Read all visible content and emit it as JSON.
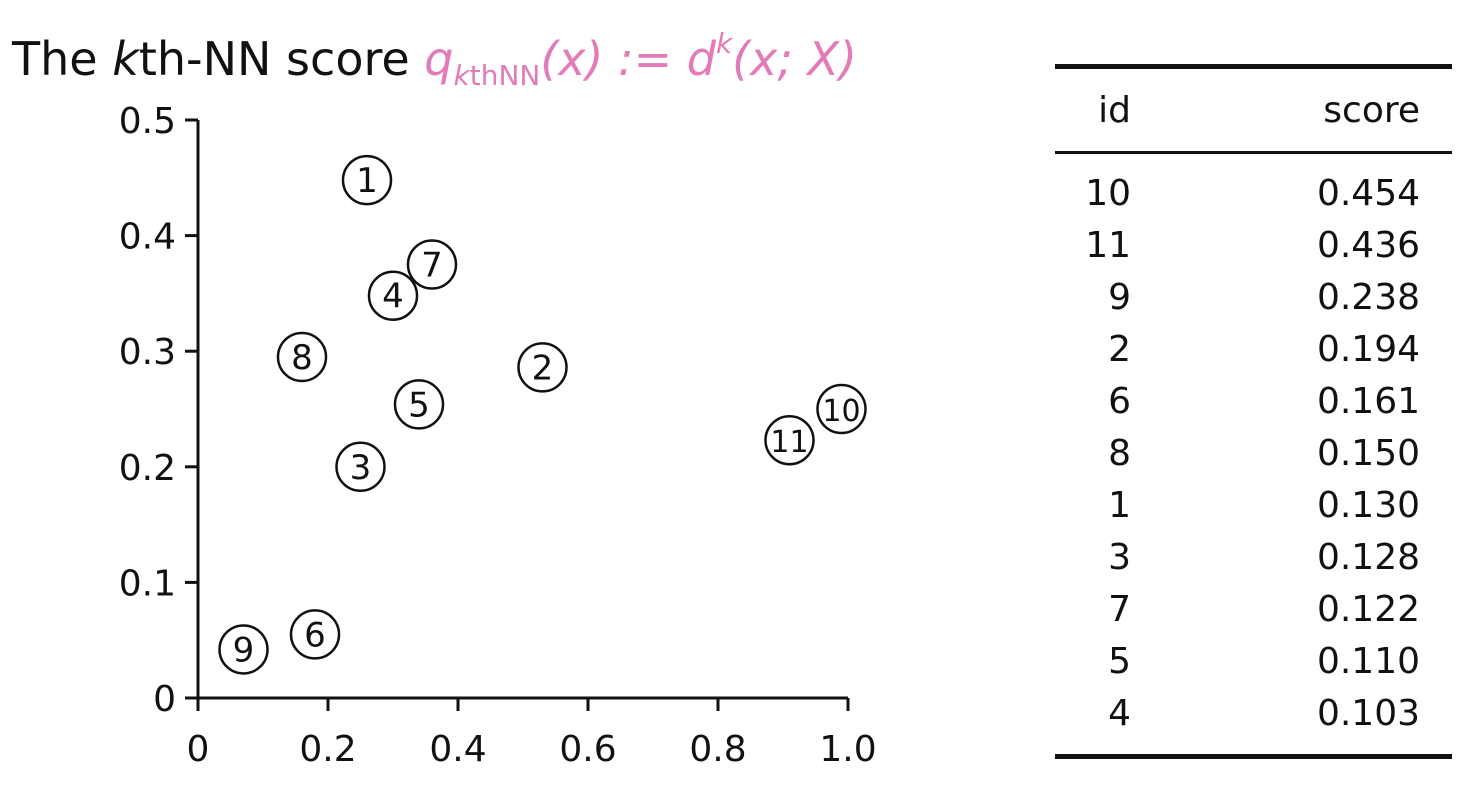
{
  "title": {
    "prefix": "The ",
    "k": "k",
    "after_k": "th-NN score ",
    "q": "q",
    "sub_k": "k",
    "sub_rest": "thNN",
    "formula_mid": "(x) := d",
    "sup": "k",
    "formula_end": "(x; X)"
  },
  "chart_data": {
    "type": "scatter",
    "title": "",
    "xlabel": "",
    "ylabel": "",
    "xlim": [
      0,
      1.0
    ],
    "ylim": [
      0,
      0.5
    ],
    "x_ticks": [
      "0",
      "0.2",
      "0.4",
      "0.6",
      "0.8",
      "1.0"
    ],
    "y_ticks": [
      "0",
      "0.1",
      "0.2",
      "0.3",
      "0.4",
      "0.5"
    ],
    "grid": false,
    "marker": "circled-id",
    "points": [
      {
        "id": "1",
        "x": 0.26,
        "y": 0.448
      },
      {
        "id": "2",
        "x": 0.53,
        "y": 0.286
      },
      {
        "id": "3",
        "x": 0.25,
        "y": 0.2
      },
      {
        "id": "4",
        "x": 0.3,
        "y": 0.348
      },
      {
        "id": "5",
        "x": 0.34,
        "y": 0.254
      },
      {
        "id": "6",
        "x": 0.18,
        "y": 0.055
      },
      {
        "id": "7",
        "x": 0.36,
        "y": 0.375
      },
      {
        "id": "8",
        "x": 0.16,
        "y": 0.295
      },
      {
        "id": "9",
        "x": 0.07,
        "y": 0.042
      },
      {
        "id": "10",
        "x": 0.99,
        "y": 0.25
      },
      {
        "id": "11",
        "x": 0.91,
        "y": 0.223
      }
    ]
  },
  "table": {
    "headers": [
      "id",
      "score"
    ],
    "rows": [
      [
        "10",
        "0.454"
      ],
      [
        "11",
        "0.436"
      ],
      [
        "9",
        "0.238"
      ],
      [
        "2",
        "0.194"
      ],
      [
        "6",
        "0.161"
      ],
      [
        "8",
        "0.150"
      ],
      [
        "1",
        "0.130"
      ],
      [
        "3",
        "0.128"
      ],
      [
        "7",
        "0.122"
      ],
      [
        "5",
        "0.110"
      ],
      [
        "4",
        "0.103"
      ]
    ]
  }
}
